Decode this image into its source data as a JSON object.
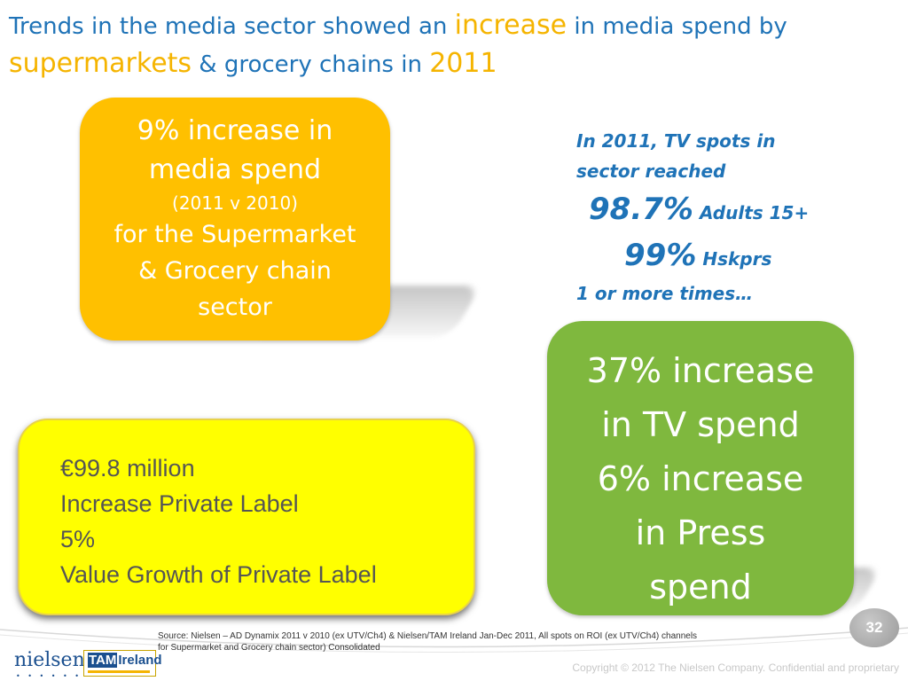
{
  "title": {
    "part1": "Trends in the media sector showed an ",
    "highlight1": "increase",
    "part2": " in media spend by",
    "highlight2": "supermarkets",
    "part3": " & grocery chains in ",
    "highlight3": "2011"
  },
  "orange_box": {
    "line1": "9% increase in",
    "line2": "media spend",
    "line3": "(2011 v 2010)",
    "line4": "for the Supermarket",
    "line5": "& Grocery chain",
    "line6": "sector"
  },
  "tv_callout": {
    "line1": "In 2011, TV spots in",
    "line2": "sector reached",
    "pct1": "98.7%",
    "label1": "Adults 15+",
    "pct2": "99%",
    "label2": "Hskprs",
    "line5": "1 or more times…"
  },
  "yellow_box": {
    "line1": "€99.8 million",
    "line2": "Increase Private Label",
    "line3": "5%",
    "line4": "Value Growth of Private Label"
  },
  "green_box": {
    "line1": "37% increase",
    "line2": "in TV spend",
    "line3": "6% increase",
    "line4": "in Press",
    "line5": "spend"
  },
  "footer": {
    "source_line1": "Source: Nielsen – AD Dynamix 2011 v 2010  (ex UTV/Ch4) & Nielsen/TAM Ireland Jan-Dec 2011, All spots on ROI (ex UTV/Ch4) channels",
    "source_line2": "for Supermarket and Grocery chain sector) Consolidated",
    "page_number": "32",
    "copyright": "Copyright © 2012 The Nielsen Company. Confidential and proprietary",
    "logo_nielsen": "nielsen",
    "logo_dots": "• • • • • • • •",
    "logo_tam_a": "TAM",
    "logo_tam_b": "Ireland"
  },
  "colors": {
    "title_blue": "#1f73b7",
    "highlight_gold": "#f5b400",
    "orange": "#ffc000",
    "yellow": "#ffff00",
    "green": "#7fb83e"
  }
}
